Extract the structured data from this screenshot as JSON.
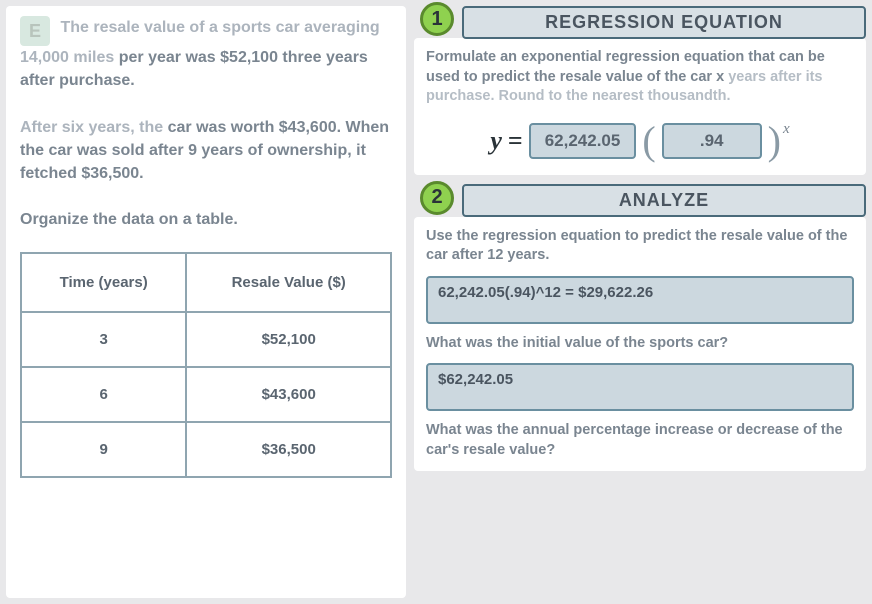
{
  "left": {
    "letter": "E",
    "para1_pre": "The resale value of a sports car averaging 14,000 miles",
    "para1_post": " per year was $52,100 three years after purchase.",
    "para2_pre": "After six years, the",
    "para2_post": " car was worth $43,600. When the car was sold after 9 years of ownership, it fetched $36,500.",
    "para3": "Organize the data on a table.",
    "table": {
      "headers": [
        "Time (years)",
        "Resale Value ($)"
      ],
      "rows": [
        [
          "3",
          "$52,100"
        ],
        [
          "6",
          "$43,600"
        ],
        [
          "9",
          "$36,500"
        ]
      ]
    }
  },
  "section1": {
    "number": "1",
    "title": "REGRESSION EQUATION",
    "instruction_pre": "Formulate an exponential regression equation that",
    "instruction_mid": " can be used to predict the resale value of the car x",
    "instruction_post": " years after its purchase. Round to the nearest thousandth.",
    "eq_y": "y",
    "eq_equals": "=",
    "val_a": "62,242.05",
    "val_b": ".94",
    "exp": "x"
  },
  "section2": {
    "number": "2",
    "title": "ANALYZE",
    "q1": "Use the regression equation to predict the resale value of the car after 12 years.",
    "a1": "62,242.05(.94)^12 = $29,622.26",
    "q2": "What was the initial value of the sports car?",
    "a2": "$62,242.05",
    "q3": "What was the annual percentage increase or decrease of the car's resale value?"
  }
}
